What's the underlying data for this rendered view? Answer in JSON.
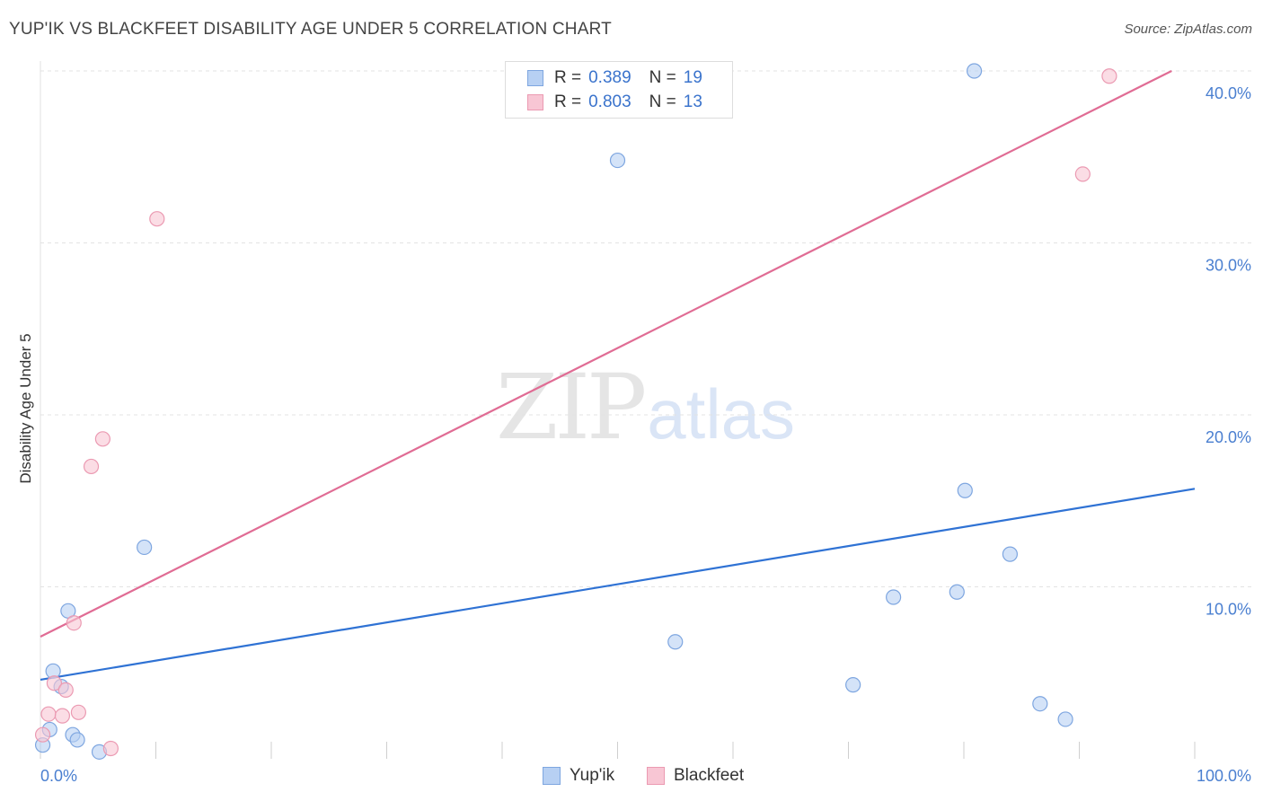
{
  "title": "YUP'IK VS BLACKFEET DISABILITY AGE UNDER 5 CORRELATION CHART",
  "source": "Source: ZipAtlas.com",
  "watermark": {
    "zip": "ZIP",
    "atlas": "atlas"
  },
  "legend": {
    "rows": [
      {
        "r_label": "R =",
        "r_value": "0.389",
        "n_label": "N =",
        "n_value": "19"
      },
      {
        "r_label": "R =",
        "r_value": "0.803",
        "n_label": "N =",
        "n_value": "13"
      }
    ]
  },
  "bottom_legend": {
    "yupik": "Yup'ik",
    "blackfeet": "Blackfeet"
  },
  "colors": {
    "yupik_fill": "#b7d0f3",
    "yupik_stroke": "#7ea6e0",
    "yupik_line": "#2f72d4",
    "blackfeet_fill": "#f8c6d4",
    "blackfeet_stroke": "#eb9ab2",
    "blackfeet_line": "#e06c94",
    "grid": "#e3e3e3",
    "tick_text": "#4a7fd0"
  },
  "chart_data": {
    "type": "scatter",
    "title": "YUP'IK VS BLACKFEET DISABILITY AGE UNDER 5 CORRELATION CHART",
    "xlabel": "",
    "ylabel": "Disability Age Under 5",
    "xlim": [
      0,
      100
    ],
    "ylim": [
      0,
      40
    ],
    "x_tick_labels": [
      "0.0%",
      "100.0%"
    ],
    "y_ticks": [
      10,
      20,
      30,
      40
    ],
    "y_tick_labels": [
      "10.0%",
      "20.0%",
      "30.0%",
      "40.0%"
    ],
    "series": [
      {
        "name": "Yup'ik",
        "r": 0.389,
        "n": 19,
        "trend": {
          "x0": 0,
          "y0": 4.6,
          "x1": 100,
          "y1": 15.7
        },
        "points": [
          {
            "x": 0.2,
            "y": 0.8
          },
          {
            "x": 0.8,
            "y": 1.7
          },
          {
            "x": 1.1,
            "y": 5.1
          },
          {
            "x": 1.8,
            "y": 4.2
          },
          {
            "x": 2.4,
            "y": 8.6
          },
          {
            "x": 2.8,
            "y": 1.4
          },
          {
            "x": 3.2,
            "y": 1.1
          },
          {
            "x": 5.1,
            "y": 0.4
          },
          {
            "x": 9.0,
            "y": 12.3
          },
          {
            "x": 50.0,
            "y": 34.8
          },
          {
            "x": 55.0,
            "y": 6.8
          },
          {
            "x": 70.4,
            "y": 4.3
          },
          {
            "x": 73.9,
            "y": 9.4
          },
          {
            "x": 79.4,
            "y": 9.7
          },
          {
            "x": 80.1,
            "y": 15.6
          },
          {
            "x": 80.9,
            "y": 40.0
          },
          {
            "x": 84.0,
            "y": 11.9
          },
          {
            "x": 86.6,
            "y": 3.2
          },
          {
            "x": 88.8,
            "y": 2.3
          }
        ]
      },
      {
        "name": "Blackfeet",
        "r": 0.803,
        "n": 13,
        "trend": {
          "x0": 0,
          "y0": 7.1,
          "x1": 98,
          "y1": 40.0
        },
        "points": [
          {
            "x": 0.2,
            "y": 1.4
          },
          {
            "x": 0.7,
            "y": 2.6
          },
          {
            "x": 1.2,
            "y": 4.4
          },
          {
            "x": 1.9,
            "y": 2.5
          },
          {
            "x": 2.2,
            "y": 4.0
          },
          {
            "x": 2.9,
            "y": 7.9
          },
          {
            "x": 3.3,
            "y": 2.7
          },
          {
            "x": 4.4,
            "y": 17.0
          },
          {
            "x": 5.4,
            "y": 18.6
          },
          {
            "x": 6.1,
            "y": 0.6
          },
          {
            "x": 10.1,
            "y": 31.4
          },
          {
            "x": 90.3,
            "y": 34.0
          },
          {
            "x": 92.6,
            "y": 39.7
          }
        ]
      }
    ]
  }
}
